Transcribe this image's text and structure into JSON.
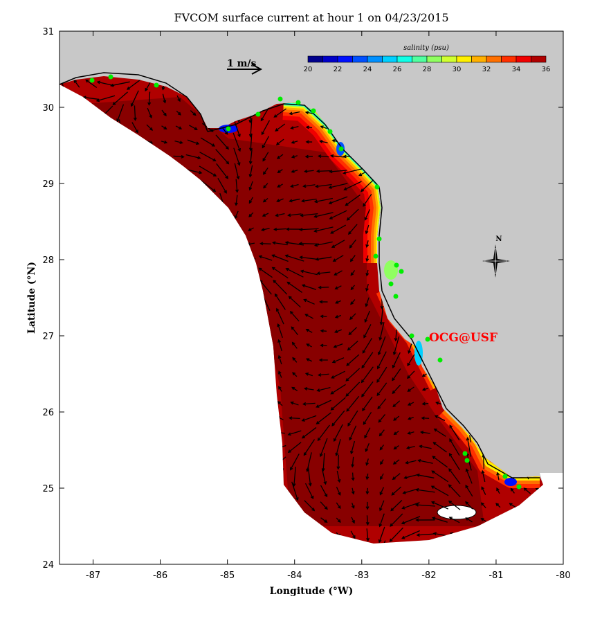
{
  "title": "FVCOM surface current at hour 1 on 04/23/2015",
  "xlabel": "Longitude (°W)",
  "ylabel": "Latitude (°N)",
  "x_ticks": [
    "-87",
    "-86",
    "-85",
    "-84",
    "-83",
    "-82",
    "-81",
    "-80"
  ],
  "x_tick_values": [
    -87,
    -86,
    -85,
    -84,
    -83,
    -82,
    -81,
    -80
  ],
  "y_ticks": [
    "24",
    "25",
    "26",
    "27",
    "28",
    "29",
    "30",
    "31"
  ],
  "y_tick_values": [
    24,
    25,
    26,
    27,
    28,
    29,
    30,
    31
  ],
  "xlim": [
    -87.5,
    -80
  ],
  "ylim": [
    24,
    31
  ],
  "scale_arrow_label": "1 m/s",
  "compass_label": "N",
  "watermark": "OCG@USF",
  "colorbar": {
    "title": "salinity (psu)",
    "ticks": [
      "20",
      "22",
      "24",
      "26",
      "28",
      "30",
      "32",
      "34",
      "36"
    ],
    "range": [
      20,
      36
    ],
    "colors": [
      "#00008c",
      "#0000c8",
      "#0010ff",
      "#0050ff",
      "#0090ff",
      "#00d0ff",
      "#10ffe6",
      "#50ffa0",
      "#90ff60",
      "#d0ff30",
      "#fff000",
      "#ffb000",
      "#ff7000",
      "#ff3000",
      "#f00000",
      "#b00000"
    ]
  },
  "colors": {
    "land": "#c8c8c8",
    "ocean_outside": "#ffffff",
    "station": "#00ee00",
    "watermark": "#ff0000",
    "domain_dark": "#880000",
    "domain_mid": "#b00000"
  }
}
